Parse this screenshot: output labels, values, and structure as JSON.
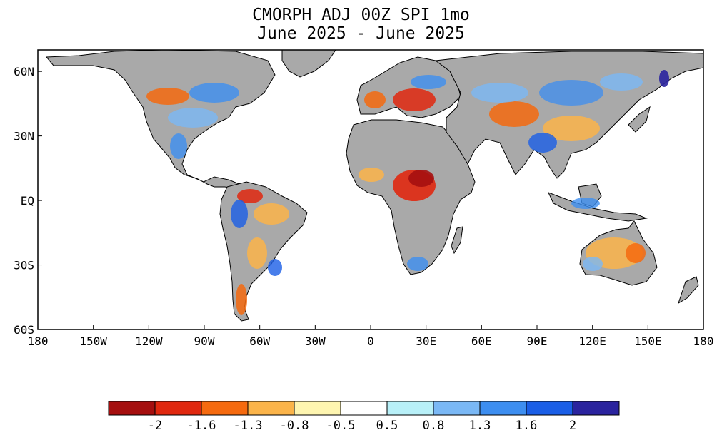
{
  "title": {
    "line1": "CMORPH ADJ 00Z SPI 1mo",
    "line2": "June 2025 - June 2025"
  },
  "axes": {
    "x_ticks": [
      "180",
      "150W",
      "120W",
      "90W",
      "60W",
      "30W",
      "0",
      "30E",
      "60E",
      "90E",
      "120E",
      "150E",
      "180"
    ],
    "y_ticks": [
      "60N",
      "30N",
      "EQ",
      "30S",
      "60S"
    ],
    "lon_range": [
      -180,
      180
    ],
    "lat_range": [
      -60,
      70
    ]
  },
  "colors": {
    "no_data": "#a9a9a9",
    "ocean": "#ffffff",
    "outline": "#000000"
  },
  "legend": {
    "bins": [
      {
        "color": "#a50f0f"
      },
      {
        "color": "#e0280f"
      },
      {
        "color": "#f56a0f"
      },
      {
        "color": "#fbb44a"
      },
      {
        "color": "#fef5b0"
      },
      {
        "color": "#ffffff"
      },
      {
        "color": "#b8f0f8"
      },
      {
        "color": "#7ab8f5"
      },
      {
        "color": "#3d8ef0"
      },
      {
        "color": "#1a5ee6"
      },
      {
        "color": "#2a239e"
      }
    ],
    "labels": [
      "-2",
      "-1.6",
      "-1.3",
      "-0.8",
      "-0.5",
      "0.5",
      "0.8",
      "1.3",
      "1.6",
      "2"
    ]
  }
}
